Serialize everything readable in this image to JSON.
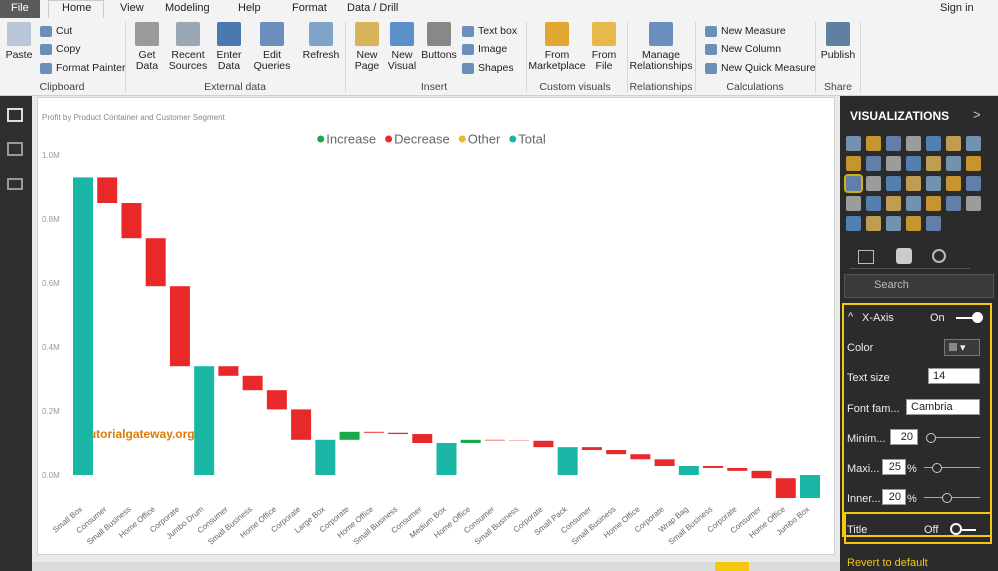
{
  "ribbon": {
    "file_tab": "File",
    "tabs": [
      "Home",
      "View",
      "Modeling",
      "Help",
      "Format",
      "Data / Drill"
    ],
    "sign_in": "Sign in",
    "clipboard": {
      "label": "Clipboard",
      "paste": "Paste",
      "cut": "Cut",
      "copy": "Copy",
      "format_painter": "Format Painter"
    },
    "external_data": {
      "label": "External data",
      "get_data": "Get Data",
      "recent_sources": "Recent Sources",
      "enter_data": "Enter Data",
      "edit_queries": "Edit Queries",
      "refresh": "Refresh"
    },
    "insert": {
      "label": "Insert",
      "new_page": "New Page",
      "new_visual": "New Visual",
      "buttons": "Buttons",
      "text_box": "Text box",
      "image": "Image",
      "shapes": "Shapes"
    },
    "custom_visuals": {
      "label": "Custom visuals",
      "from_marketplace": "From Marketplace",
      "from_file": "From File"
    },
    "relationships": {
      "label": "Relationships",
      "manage": "Manage Relationships"
    },
    "calculations": {
      "label": "Calculations",
      "new_measure": "New Measure",
      "new_column": "New Column",
      "new_quick_measure": "New Quick Measure"
    },
    "share": {
      "label": "Share",
      "publish": "Publish"
    }
  },
  "pane": {
    "title": "VISUALIZATIONS",
    "search": "Search",
    "section": "X-Axis",
    "section_state": "On",
    "rows": [
      {
        "label": "Color"
      },
      {
        "label": "Text size",
        "value": 14
      },
      {
        "label": "Font fam...",
        "value": "Cambria"
      },
      {
        "label": "Minim...",
        "value": 20
      },
      {
        "label": "Maxi...",
        "value": 25,
        "unit": "%"
      },
      {
        "label": "Inner...",
        "value": 20,
        "unit": "%"
      }
    ],
    "title_row": {
      "label": "Title",
      "state": "Off"
    },
    "revert": "Revert to default"
  },
  "watermark": "©tutorialgateway.org",
  "chart_data": {
    "type": "waterfall",
    "title": "Profit by Product Container and Customer Segment",
    "categories": [
      "Small Box",
      "Consumer",
      "Small Business",
      "Home Office",
      "Corporate",
      "Jumbo Drum",
      "Consumer",
      "Small Business",
      "Home Office",
      "Corporate",
      "Large Box",
      "Corporate",
      "Home Office",
      "Small Business",
      "Consumer",
      "Medium Box",
      "Home Office",
      "Consumer",
      "Small Business",
      "Corporate",
      "Small Pack",
      "Consumer",
      "Small Business",
      "Home Office",
      "Corporate",
      "Wrap Bag",
      "Small Business",
      "Corporate",
      "Consumer",
      "Home Office",
      "Jumbo Box"
    ],
    "series": [
      {
        "name": "Increase",
        "color": "#1aaa4b",
        "values": [
          null,
          null,
          null,
          null,
          null,
          null,
          null,
          null,
          null,
          null,
          null,
          25000,
          null,
          null,
          null,
          null,
          10000,
          null,
          null,
          null,
          null,
          null,
          null,
          null,
          null,
          null,
          null,
          null,
          null,
          null,
          null
        ]
      },
      {
        "name": "Decrease",
        "color": "#e8292a",
        "values": [
          null,
          -80000,
          -110000,
          -150000,
          -250000,
          null,
          -30000,
          -45000,
          -60000,
          -95000,
          null,
          null,
          -3000,
          -4000,
          -28000,
          null,
          null,
          -2000,
          -1000,
          -20000,
          null,
          -9000,
          -13000,
          -16000,
          -21000,
          null,
          -6000,
          -9000,
          -23000,
          -62000,
          null
        ]
      },
      {
        "name": "Other",
        "color": "#e8b923",
        "values": [
          null,
          null,
          null,
          null,
          null,
          null,
          null,
          null,
          null,
          null,
          null,
          null,
          null,
          null,
          null,
          null,
          null,
          null,
          null,
          null,
          null,
          null,
          null,
          null,
          null,
          null,
          null,
          null,
          null,
          null,
          null
        ]
      },
      {
        "name": "Total",
        "color": "#1ab6a5",
        "values": [
          930000,
          null,
          null,
          null,
          null,
          340000,
          null,
          null,
          null,
          null,
          110000,
          null,
          null,
          null,
          null,
          100000,
          null,
          null,
          null,
          null,
          87000,
          null,
          null,
          null,
          null,
          28000,
          null,
          null,
          null,
          null,
          -72000
        ]
      }
    ],
    "ylim": [
      -100000,
      1000000
    ],
    "yticks": [
      {
        "value": 0,
        "label": "0.0M"
      },
      {
        "value": 200000,
        "label": "0.2M"
      },
      {
        "value": 400000,
        "label": "0.4M"
      },
      {
        "value": 600000,
        "label": "0.6M"
      },
      {
        "value": 800000,
        "label": "0.8M"
      },
      {
        "value": 1000000,
        "label": "1.0M"
      }
    ],
    "grid": false,
    "legend": "top"
  }
}
